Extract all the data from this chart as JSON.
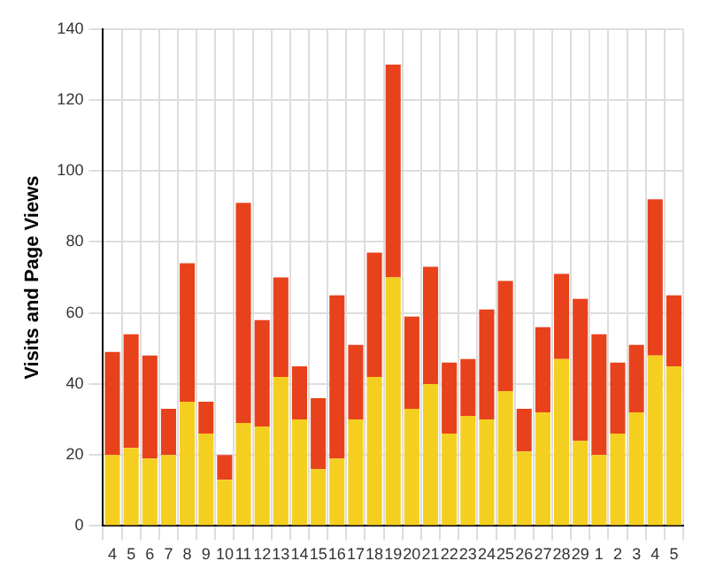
{
  "chart_data": {
    "type": "bar",
    "stacked": true,
    "ylabel": "Visits and Page Views",
    "categories": [
      "4",
      "5",
      "6",
      "7",
      "8",
      "9",
      "10",
      "11",
      "12",
      "13",
      "14",
      "15",
      "16",
      "17",
      "18",
      "19",
      "20",
      "21",
      "22",
      "23",
      "24",
      "25",
      "26",
      "27",
      "28",
      "29",
      "1",
      "2",
      "3",
      "4",
      "5"
    ],
    "series": [
      {
        "color": "#f5cf1f",
        "values": [
          20,
          22,
          19,
          20,
          35,
          26,
          13,
          29,
          28,
          42,
          30,
          16,
          19,
          30,
          42,
          70,
          33,
          40,
          26,
          31,
          30,
          38,
          21,
          32,
          47,
          24,
          20,
          26,
          32,
          48,
          45
        ]
      },
      {
        "color": "#e8421c",
        "values": [
          29,
          32,
          29,
          13,
          39,
          9,
          7,
          62,
          30,
          28,
          15,
          20,
          46,
          21,
          35,
          60,
          26,
          33,
          20,
          16,
          31,
          31,
          12,
          24,
          24,
          40,
          34,
          20,
          19,
          44,
          20
        ]
      }
    ],
    "ylim": [
      0,
      140
    ],
    "yticks": [
      0,
      20,
      40,
      60,
      80,
      100,
      120,
      140
    ],
    "grid": true,
    "legend": false
  }
}
